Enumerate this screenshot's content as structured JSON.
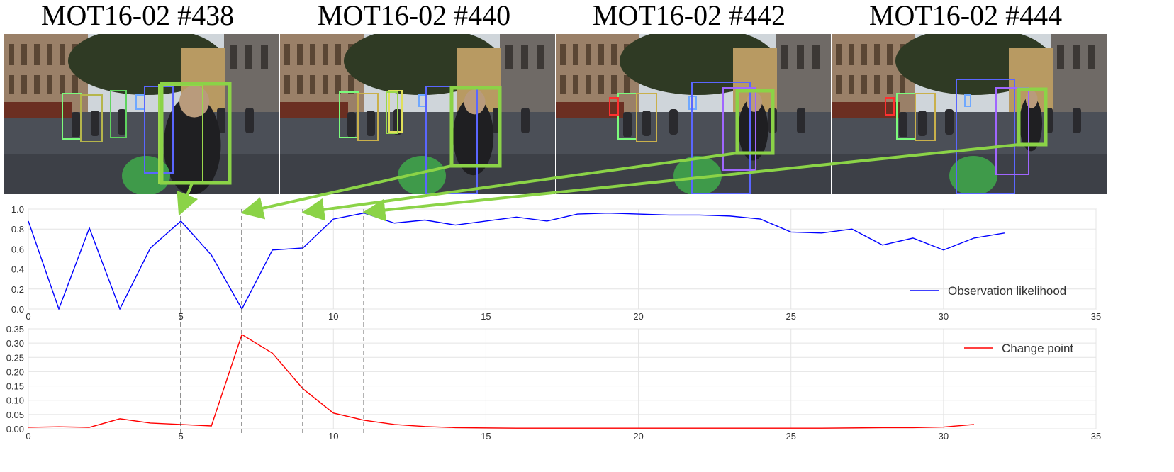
{
  "frames": [
    {
      "title": "MOT16-02 #438",
      "bbox_colors": [
        "#7cfc7c",
        "#b5b54b",
        "#5fd35f",
        "#6fa8ff",
        "#5a66ff",
        "#9ad84c"
      ],
      "highlight_color": "#8bd347"
    },
    {
      "title": "MOT16-02 #440",
      "bbox_colors": [
        "#7cfc7c",
        "#c9b04b",
        "#e0e05a",
        "#6fa8ff",
        "#5a66ff",
        "#9ad84c"
      ],
      "highlight_color": "#8bd347"
    },
    {
      "title": "MOT16-02 #442",
      "bbox_colors": [
        "#7cfc7c",
        "#c9b04b",
        "#ff3030",
        "#6fa8ff",
        "#5a66ff",
        "#a066ff"
      ],
      "highlight_color": "#8bd347"
    },
    {
      "title": "MOT16-02 #444",
      "bbox_colors": [
        "#7cfc7c",
        "#c9b04b",
        "#ff3030",
        "#6fa8ff",
        "#5a66ff",
        "#a066ff"
      ],
      "highlight_color": "#8bd347"
    }
  ],
  "markers": [
    5,
    7,
    9,
    11
  ],
  "chart_data": [
    {
      "type": "line",
      "x": [
        0,
        1,
        2,
        3,
        4,
        5,
        6,
        7,
        8,
        9,
        10,
        11,
        12,
        13,
        14,
        15,
        16,
        17,
        18,
        19,
        20,
        21,
        22,
        23,
        24,
        25,
        26,
        27,
        28,
        29,
        30,
        31,
        32
      ],
      "series": [
        {
          "name": "Observation likelihood",
          "color": "#0000ff",
          "values": [
            0.88,
            0.0,
            0.81,
            0.0,
            0.61,
            0.88,
            0.54,
            0.0,
            0.59,
            0.61,
            0.9,
            0.96,
            0.86,
            0.89,
            0.84,
            0.88,
            0.92,
            0.88,
            0.95,
            0.96,
            0.95,
            0.94,
            0.94,
            0.93,
            0.9,
            0.77,
            0.76,
            0.8,
            0.64,
            0.71,
            0.59,
            0.71,
            0.76
          ]
        }
      ],
      "xlim": [
        0,
        35
      ],
      "ylim": [
        0.0,
        1.0
      ],
      "xticks": [
        "0",
        "5",
        "10",
        "15",
        "20",
        "25",
        "30",
        "35"
      ],
      "yticks": [
        "0.0",
        "0.2",
        "0.4",
        "0.6",
        "0.8",
        "1.0"
      ],
      "grid": true,
      "legend": "bottom-right"
    },
    {
      "type": "line",
      "x": [
        0,
        1,
        2,
        3,
        4,
        5,
        6,
        7,
        8,
        9,
        10,
        11,
        12,
        13,
        14,
        15,
        16,
        17,
        18,
        19,
        20,
        21,
        22,
        23,
        24,
        25,
        26,
        27,
        28,
        29,
        30,
        31
      ],
      "series": [
        {
          "name": "Change point",
          "color": "#ff0000",
          "values": [
            0.005,
            0.007,
            0.005,
            0.035,
            0.02,
            0.015,
            0.01,
            0.33,
            0.265,
            0.14,
            0.055,
            0.03,
            0.015,
            0.008,
            0.004,
            0.003,
            0.002,
            0.002,
            0.002,
            0.002,
            0.002,
            0.002,
            0.002,
            0.002,
            0.002,
            0.002,
            0.002,
            0.003,
            0.004,
            0.004,
            0.006,
            0.015
          ]
        }
      ],
      "xlim": [
        0,
        35
      ],
      "ylim": [
        0.0,
        0.35
      ],
      "xticks": [
        "0",
        "5",
        "10",
        "15",
        "20",
        "25",
        "30",
        "35"
      ],
      "yticks": [
        "0.00",
        "0.05",
        "0.10",
        "0.15",
        "0.20",
        "0.25",
        "0.30",
        "0.35"
      ],
      "grid": true,
      "legend": "top-right"
    }
  ]
}
